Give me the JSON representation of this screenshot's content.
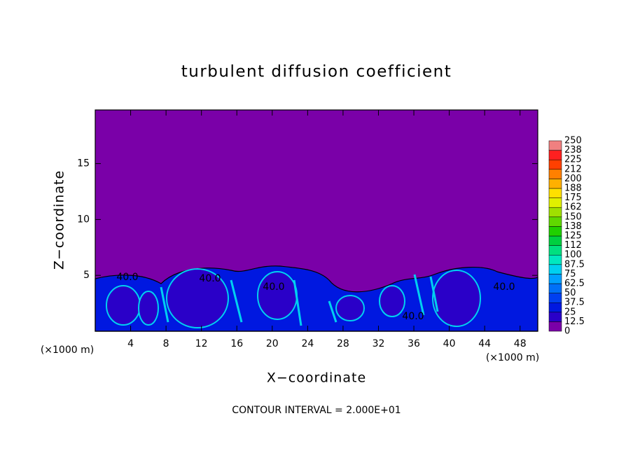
{
  "chart_data": {
    "type": "contour",
    "title": "turbulent diffusion coefficient",
    "x_label": "X−coordinate",
    "y_label": "Z−coordinate",
    "x_unit": "(×1000 m)",
    "y_unit": "(×1000 m)",
    "xlim": [
      0,
      50
    ],
    "ylim": [
      0,
      19.8
    ],
    "xticks": [
      4,
      8,
      12,
      16,
      20,
      24,
      28,
      32,
      36,
      40,
      44,
      48
    ],
    "yticks": [
      5,
      10,
      15
    ],
    "levels": [
      0,
      12.5,
      25,
      37.5,
      50,
      62.5,
      75,
      87.5,
      100,
      112,
      125,
      138,
      150,
      162,
      175,
      188,
      200,
      212,
      225,
      238,
      250
    ],
    "colors": [
      "#7a00a8",
      "#2a00c8",
      "#0018e0",
      "#0040f0",
      "#0070f8",
      "#00a0ff",
      "#00d0f0",
      "#00e8c0",
      "#00e080",
      "#00d040",
      "#20d000",
      "#60d800",
      "#a0e000",
      "#e0f000",
      "#ffe000",
      "#ffb000",
      "#ff8000",
      "#ff4000",
      "#ff2020",
      "#f08080"
    ],
    "contour_labels": [
      {
        "value": 40,
        "label": "40.0"
      },
      {
        "value": 40,
        "label": "40.0"
      },
      {
        "value": 40,
        "label": "40.0"
      },
      {
        "value": 40,
        "label": "40.0"
      },
      {
        "value": 40,
        "label": "40.0"
      }
    ],
    "footnote": "CONTOUR INTERVAL = 2.000E+01"
  }
}
